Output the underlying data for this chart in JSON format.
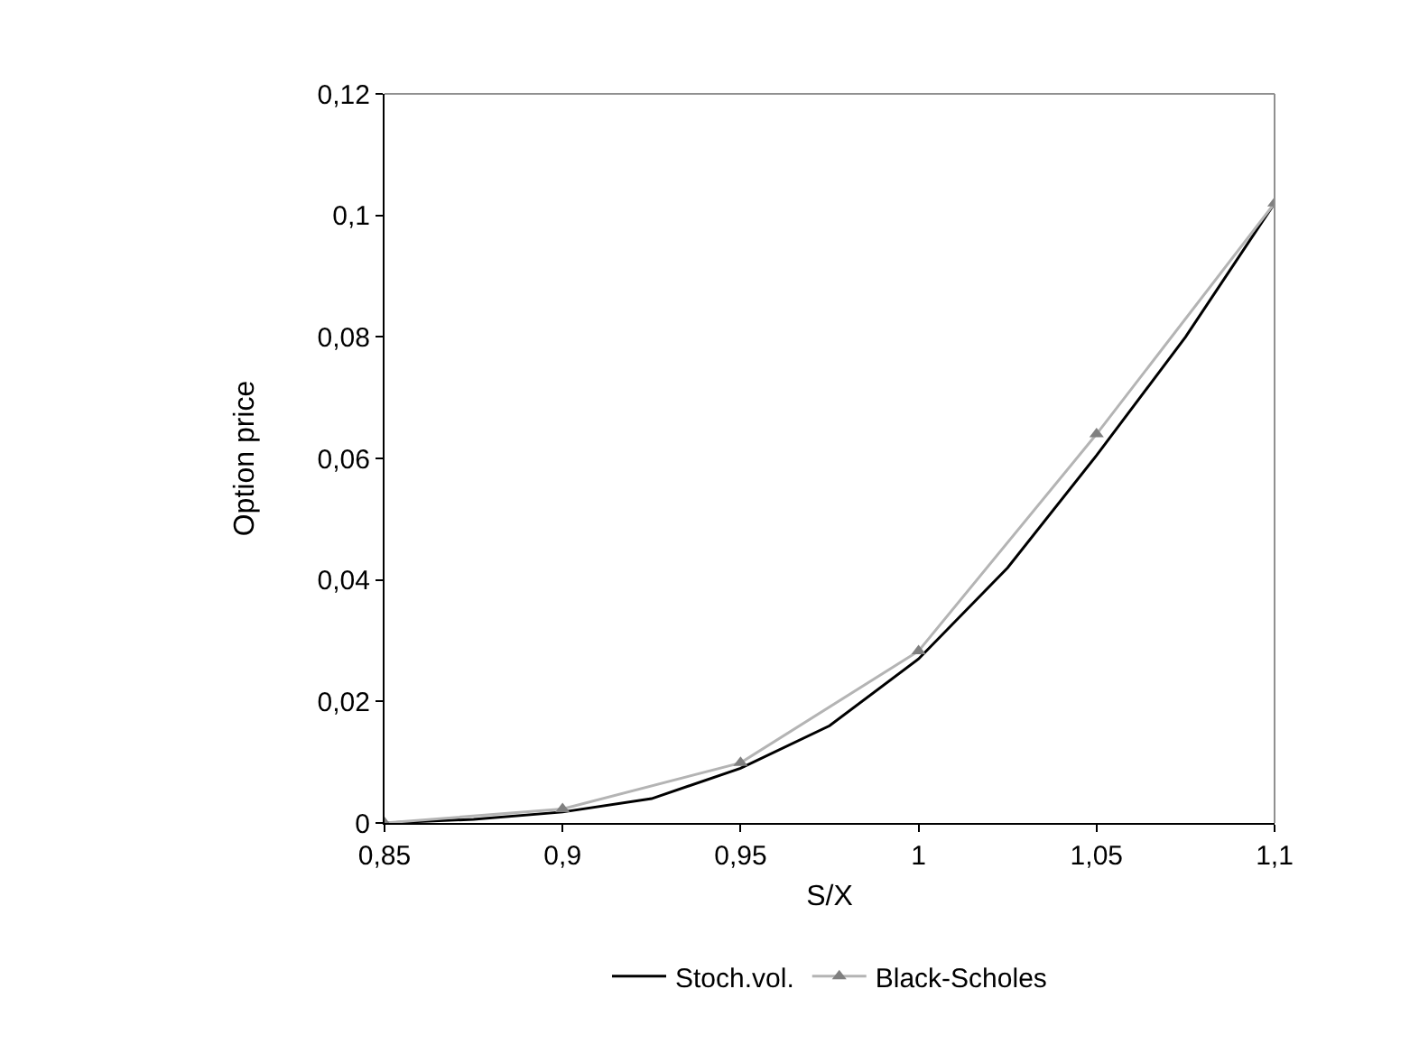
{
  "chart_data": {
    "type": "line",
    "xlabel": "S/X",
    "ylabel": "Option price",
    "xlim": [
      0.85,
      1.1
    ],
    "xticks": [
      {
        "value": 0.85,
        "label": "0,85"
      },
      {
        "value": 0.9,
        "label": "0,9"
      },
      {
        "value": 0.95,
        "label": "0,95"
      },
      {
        "value": 1,
        "label": "1"
      },
      {
        "value": 1.05,
        "label": "1,05"
      },
      {
        "value": 1.1,
        "label": "1,1"
      }
    ],
    "ylim": [
      0,
      0.12
    ],
    "yticks": [
      {
        "value": 0,
        "label": "0"
      },
      {
        "value": 0.02,
        "label": "0,02"
      },
      {
        "value": 0.04,
        "label": "0,04"
      },
      {
        "value": 0.06,
        "label": "0,06"
      },
      {
        "value": 0.08,
        "label": "0,08"
      },
      {
        "value": 0.1,
        "label": "0,1"
      },
      {
        "value": 0.12,
        "label": "0,12"
      }
    ],
    "legend": "bottom",
    "series": [
      {
        "name": "Stoch.vol.",
        "color": "#000000",
        "marker": "none",
        "x": [
          0.85,
          0.875,
          0.9,
          0.925,
          0.95,
          0.975,
          1.0,
          1.025,
          1.05,
          1.075,
          1.1
        ],
        "values": [
          0.0,
          0.0006,
          0.0018,
          0.004,
          0.009,
          0.016,
          0.027,
          0.042,
          0.0605,
          0.08,
          0.102
        ]
      },
      {
        "name": "Black-Scholes",
        "color": "#b4b4b4",
        "marker": "triangle",
        "x": [
          0.85,
          0.9,
          0.95,
          1.0,
          1.05,
          1.1
        ],
        "values": [
          0.0,
          0.0023,
          0.0099,
          0.0283,
          0.064,
          0.102
        ]
      }
    ]
  }
}
